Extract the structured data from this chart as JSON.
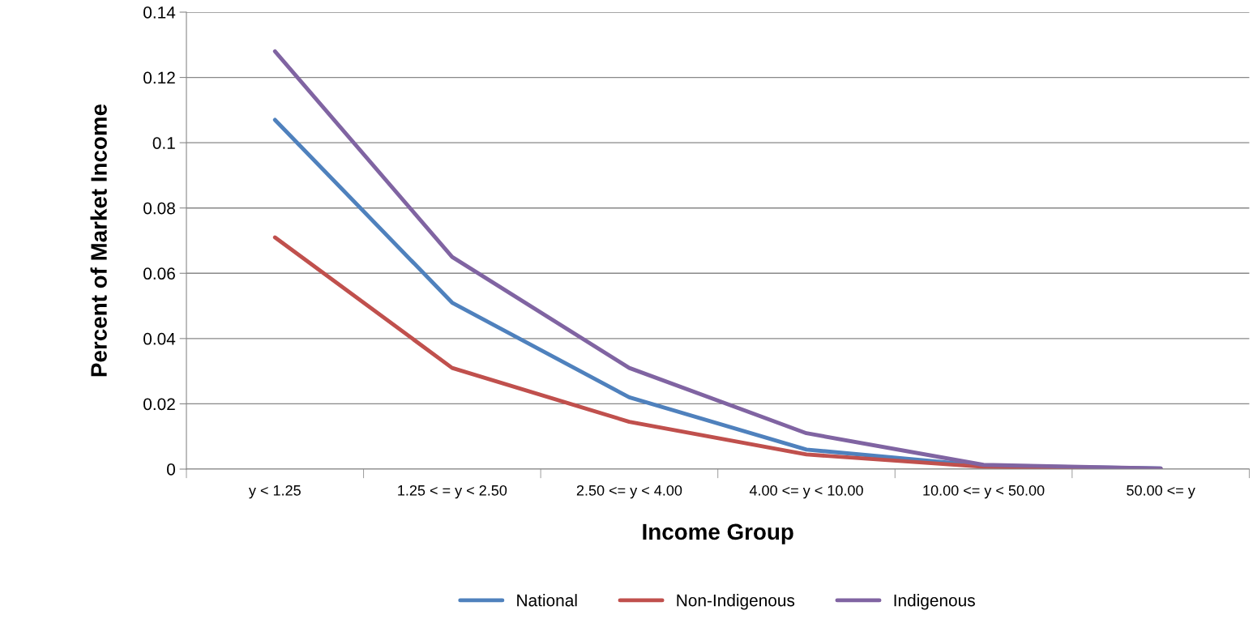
{
  "chart_data": {
    "type": "line",
    "xlabel": "Income Group",
    "ylabel": "Percent of Market Income",
    "categories": [
      "y < 1.25",
      "1.25 < = y < 2.50",
      "2.50 <= y < 4.00",
      "4.00 <= y < 10.00",
      "10.00 <= y < 50.00",
      "50.00 <= y"
    ],
    "series": [
      {
        "name": "National",
        "color": "#4f81bd",
        "values": [
          0.107,
          0.051,
          0.022,
          0.006,
          0.001,
          0.0002
        ]
      },
      {
        "name": "Non-Indigenous",
        "color": "#c0504d",
        "values": [
          0.071,
          0.031,
          0.0145,
          0.0045,
          0.0007,
          0.0001
        ]
      },
      {
        "name": "Indigenous",
        "color": "#8064a2",
        "values": [
          0.128,
          0.065,
          0.031,
          0.011,
          0.0013,
          0.0002
        ]
      }
    ],
    "ylim": [
      0,
      0.14
    ],
    "yticks": [
      {
        "value": 0,
        "label": "0"
      },
      0.02,
      0.04,
      0.06,
      0.08,
      0.1,
      0.12,
      0.14
    ],
    "grid": "y",
    "legend": "bottom",
    "marker": "none",
    "line_style": "solid"
  }
}
